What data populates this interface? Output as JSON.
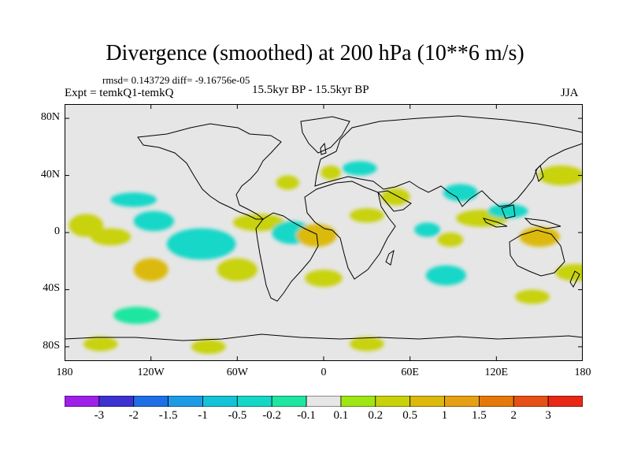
{
  "title": "Divergence (smoothed) at 200 hPa (10**6 m/s)",
  "stats": "rmsd= 0.143729 diff= -9.16756e-05",
  "experiment": "Expt = temkQ1-temkQ",
  "period": "15.5kyr BP - 15.5kyr BP",
  "season": "JJA",
  "axes": {
    "y_ticks": [
      {
        "label": "80N",
        "lat": 80
      },
      {
        "label": "40N",
        "lat": 40
      },
      {
        "label": "0",
        "lat": 0
      },
      {
        "label": "40S",
        "lat": -40
      },
      {
        "label": "80S",
        "lat": -80
      }
    ],
    "x_ticks": [
      {
        "label": "180",
        "lon": -180
      },
      {
        "label": "120W",
        "lon": -120
      },
      {
        "label": "60W",
        "lon": -60
      },
      {
        "label": "0",
        "lon": 0
      },
      {
        "label": "60E",
        "lon": 60
      },
      {
        "label": "120E",
        "lon": 120
      },
      {
        "label": "180",
        "lon": 180
      }
    ]
  },
  "colorbar": {
    "colors": [
      "#9d1fe8",
      "#3c32d2",
      "#1e6ee6",
      "#1e9be6",
      "#14c3d7",
      "#14d7c8",
      "#1ee6a0",
      "#e6e6e6",
      "#a0e614",
      "#c8d20a",
      "#dcb90a",
      "#e6a014",
      "#e6780a",
      "#e65014",
      "#e62814"
    ],
    "labels": [
      "-3",
      "-2",
      "-1.5",
      "-1",
      "-0.5",
      "-0.2",
      "-0.1",
      "0.1",
      "0.2",
      "0.5",
      "1",
      "1.5",
      "2",
      "3"
    ]
  },
  "chart_data": {
    "type": "heatmap",
    "title": "Divergence (smoothed) at 200 hPa (10**6 m/s)",
    "units": "10**6 m/s",
    "projection": "cylindrical equidistant",
    "xlim": [
      -180,
      180
    ],
    "ylim": [
      -90,
      90
    ],
    "levels": [
      -3,
      -2,
      -1.5,
      -1,
      -0.5,
      -0.2,
      -0.1,
      0.1,
      0.2,
      0.5,
      1,
      1.5,
      2,
      3
    ],
    "anomaly_blobs": [
      {
        "lon": -165,
        "lat": 5,
        "value": 0.25,
        "rx": 12,
        "ry": 8
      },
      {
        "lon": -132,
        "lat": 23,
        "value": -0.25,
        "rx": 16,
        "ry": 5
      },
      {
        "lon": -118,
        "lat": 8,
        "value": -0.35,
        "rx": 14,
        "ry": 7
      },
      {
        "lon": -148,
        "lat": -3,
        "value": 0.3,
        "rx": 14,
        "ry": 6
      },
      {
        "lon": -120,
        "lat": -26,
        "value": 0.9,
        "rx": 12,
        "ry": 8
      },
      {
        "lon": -85,
        "lat": -8,
        "value": -0.5,
        "rx": 24,
        "ry": 11
      },
      {
        "lon": -60,
        "lat": -26,
        "value": 0.35,
        "rx": 14,
        "ry": 8
      },
      {
        "lon": -45,
        "lat": 7,
        "value": 0.25,
        "rx": 18,
        "ry": 6
      },
      {
        "lon": -22,
        "lat": 0,
        "value": -0.35,
        "rx": 14,
        "ry": 8
      },
      {
        "lon": -5,
        "lat": -2,
        "value": 0.75,
        "rx": 14,
        "ry": 8
      },
      {
        "lon": 0,
        "lat": -32,
        "value": 0.3,
        "rx": 13,
        "ry": 6
      },
      {
        "lon": -25,
        "lat": 35,
        "value": 0.25,
        "rx": 8,
        "ry": 5
      },
      {
        "lon": 5,
        "lat": 42,
        "value": 0.3,
        "rx": 7,
        "ry": 5
      },
      {
        "lon": 25,
        "lat": 45,
        "value": -0.25,
        "rx": 12,
        "ry": 5
      },
      {
        "lon": 30,
        "lat": 12,
        "value": 0.2,
        "rx": 12,
        "ry": 5
      },
      {
        "lon": 50,
        "lat": 25,
        "value": 0.25,
        "rx": 10,
        "ry": 6
      },
      {
        "lon": 72,
        "lat": 2,
        "value": -0.25,
        "rx": 9,
        "ry": 5
      },
      {
        "lon": 88,
        "lat": -5,
        "value": 0.35,
        "rx": 9,
        "ry": 5
      },
      {
        "lon": 85,
        "lat": -30,
        "value": -0.3,
        "rx": 14,
        "ry": 7
      },
      {
        "lon": 110,
        "lat": 10,
        "value": 0.25,
        "rx": 18,
        "ry": 6
      },
      {
        "lon": 128,
        "lat": 15,
        "value": -0.25,
        "rx": 14,
        "ry": 5
      },
      {
        "lon": 95,
        "lat": 28,
        "value": -0.25,
        "rx": 12,
        "ry": 6
      },
      {
        "lon": 150,
        "lat": -3,
        "value": 0.75,
        "rx": 14,
        "ry": 7
      },
      {
        "lon": 175,
        "lat": -28,
        "value": 0.3,
        "rx": 14,
        "ry": 6
      },
      {
        "lon": 145,
        "lat": -45,
        "value": 0.25,
        "rx": 12,
        "ry": 5
      },
      {
        "lon": 165,
        "lat": 40,
        "value": 0.25,
        "rx": 16,
        "ry": 7
      },
      {
        "lon": -130,
        "lat": -58,
        "value": -0.2,
        "rx": 16,
        "ry": 6
      },
      {
        "lon": -155,
        "lat": -78,
        "value": 0.3,
        "rx": 12,
        "ry": 5
      },
      {
        "lon": -80,
        "lat": -80,
        "value": 0.35,
        "rx": 12,
        "ry": 5
      },
      {
        "lon": 30,
        "lat": -78,
        "value": 0.25,
        "rx": 12,
        "ry": 5
      }
    ]
  }
}
